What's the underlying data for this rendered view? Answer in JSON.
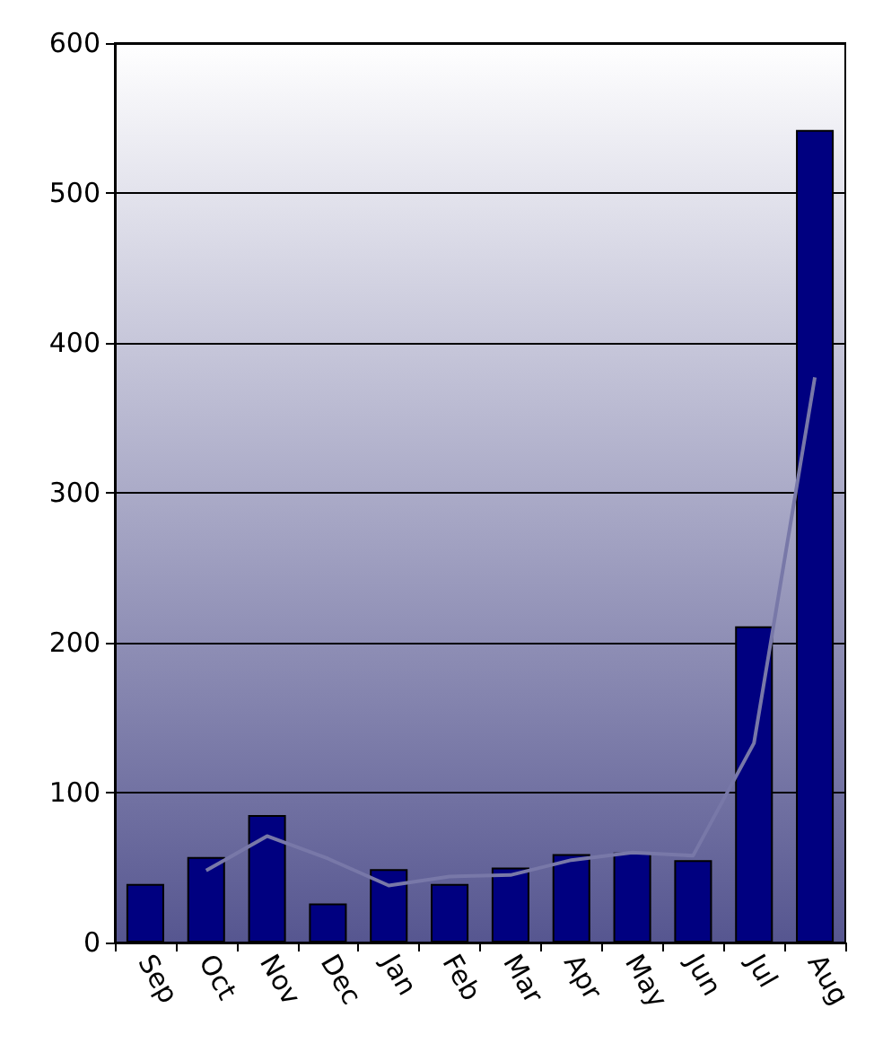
{
  "chart_data": {
    "type": "bar",
    "categories": [
      "Sep",
      "Oct",
      "Nov",
      "Dec",
      "Jan",
      "Feb",
      "Mar",
      "Apr",
      "May",
      "Jun",
      "Jul",
      "Aug"
    ],
    "series": [
      {
        "color": "#000080",
        "values": [
          39,
          57,
          85,
          26,
          49,
          39,
          50,
          59,
          60,
          55,
          211,
          542
        ]
      },
      {
        "type": "line",
        "color": "#7878a8",
        "values": [
          null,
          48,
          71,
          56,
          38,
          44,
          45,
          55,
          60,
          58,
          133,
          377
        ]
      }
    ],
    "ylim": [
      0,
      600
    ],
    "yticks": [
      0,
      100,
      200,
      300,
      400,
      500,
      600
    ],
    "grid": "y",
    "marker": "none"
  }
}
